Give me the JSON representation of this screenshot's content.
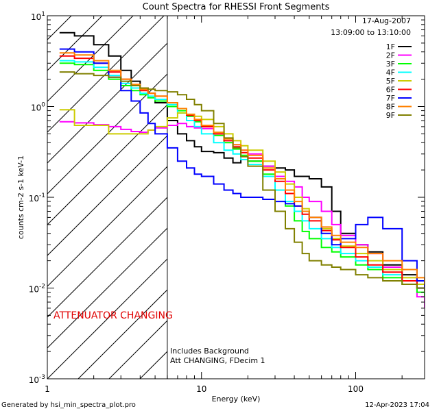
{
  "chart_data": {
    "type": "line",
    "title": "Count Spectra for RHESSI Front Segments",
    "xlabel": "Energy (keV)",
    "ylabel": "counts cm-2 s-1 keV-1",
    "xscale": "log",
    "yscale": "log",
    "xlim": [
      1,
      280
    ],
    "ylim": [
      0.001,
      10
    ],
    "x_ticks": [
      {
        "value": 1,
        "label": "1"
      },
      {
        "value": 10,
        "label": "10"
      },
      {
        "value": 100,
        "label": "100"
      }
    ],
    "y_ticks": [
      {
        "value": 10,
        "base": "10",
        "exp": "1"
      },
      {
        "value": 1,
        "base": "10",
        "exp": "0"
      },
      {
        "value": 0.1,
        "base": "10",
        "exp": "-1"
      },
      {
        "value": 0.01,
        "base": "10",
        "exp": "-2"
      },
      {
        "value": 0.001,
        "base": "10",
        "exp": "-3"
      }
    ],
    "date": "17-Aug-2007",
    "time_range": "13:09:00 to 13:10:00",
    "attenuator_label": "ATTENUATOR CHANGING",
    "attenuator_edge_keV": 6,
    "notes": [
      "Includes Background",
      "Att CHANGING, FDecim 1"
    ],
    "series": [
      {
        "name": "1F",
        "color": "#000000",
        "x": [
          1.2,
          1.5,
          2,
          2.5,
          3,
          3.5,
          4,
          4.5,
          5,
          6,
          7,
          8,
          9,
          10,
          12,
          14,
          16,
          18,
          20,
          25,
          30,
          35,
          40,
          45,
          50,
          60,
          70,
          80,
          100,
          120,
          150,
          200,
          250,
          280
        ],
        "y": [
          6.5,
          6,
          4.8,
          3.6,
          2.5,
          1.9,
          1.6,
          1.4,
          1.1,
          0.7,
          0.5,
          0.42,
          0.36,
          0.32,
          0.31,
          0.27,
          0.24,
          0.26,
          0.25,
          0.22,
          0.21,
          0.2,
          0.17,
          0.17,
          0.16,
          0.13,
          0.07,
          0.04,
          0.03,
          0.025,
          0.018,
          0.014,
          0.012,
          0.01
        ]
      },
      {
        "name": "2F",
        "color": "#ff00ff",
        "x": [
          1.2,
          1.5,
          2,
          2.5,
          3,
          3.5,
          4,
          4.5,
          5,
          6,
          7,
          8,
          9,
          10,
          12,
          14,
          16,
          18,
          20,
          25,
          30,
          35,
          40,
          45,
          50,
          60,
          70,
          80,
          100,
          120,
          150,
          200,
          250,
          280
        ],
        "y": [
          0.68,
          0.66,
          0.63,
          0.6,
          0.56,
          0.53,
          0.52,
          0.55,
          0.58,
          0.62,
          0.65,
          0.6,
          0.58,
          0.57,
          0.5,
          0.42,
          0.38,
          0.33,
          0.3,
          0.22,
          0.17,
          0.15,
          0.13,
          0.1,
          0.09,
          0.07,
          0.05,
          0.038,
          0.03,
          0.024,
          0.017,
          0.012,
          0.008,
          0.006
        ]
      },
      {
        "name": "3F",
        "color": "#00ff00",
        "x": [
          1.2,
          1.5,
          2,
          2.5,
          3,
          3.5,
          4,
          4.5,
          5,
          6,
          7,
          8,
          9,
          10,
          12,
          14,
          16,
          18,
          20,
          25,
          30,
          35,
          40,
          45,
          50,
          60,
          70,
          80,
          100,
          120,
          150,
          200,
          250,
          280
        ],
        "y": [
          3.0,
          2.9,
          2.5,
          2.0,
          1.7,
          1.5,
          1.35,
          1.25,
          1.15,
          1.0,
          0.9,
          0.78,
          0.68,
          0.6,
          0.48,
          0.4,
          0.34,
          0.29,
          0.25,
          0.18,
          0.12,
          0.08,
          0.055,
          0.042,
          0.035,
          0.028,
          0.025,
          0.022,
          0.018,
          0.016,
          0.013,
          0.011,
          0.009,
          0.008
        ]
      },
      {
        "name": "4F",
        "color": "#00ffff",
        "x": [
          1.2,
          1.5,
          2,
          2.5,
          3,
          3.5,
          4,
          4.5,
          5,
          6,
          7,
          8,
          9,
          10,
          12,
          14,
          16,
          18,
          20,
          25,
          30,
          35,
          40,
          45,
          50,
          60,
          70,
          80,
          100,
          120,
          150,
          200,
          250,
          280
        ],
        "y": [
          3.2,
          3.1,
          2.7,
          2.2,
          1.8,
          1.6,
          1.4,
          1.3,
          1.2,
          1.05,
          0.85,
          0.7,
          0.6,
          0.5,
          0.4,
          0.33,
          0.3,
          0.26,
          0.23,
          0.17,
          0.12,
          0.09,
          0.07,
          0.055,
          0.045,
          0.035,
          0.028,
          0.024,
          0.02,
          0.017,
          0.014,
          0.012,
          0.01,
          0.009
        ]
      },
      {
        "name": "5F",
        "color": "#cccc00",
        "x": [
          1.2,
          1.5,
          2,
          2.5,
          3,
          3.5,
          4,
          4.5,
          5,
          6,
          7,
          8,
          9,
          10,
          12,
          14,
          16,
          18,
          20,
          25,
          30,
          35,
          40,
          45,
          50,
          60,
          70,
          80,
          100,
          120,
          150,
          200,
          250,
          280
        ],
        "y": [
          0.92,
          0.62,
          0.62,
          0.5,
          0.5,
          0.5,
          0.5,
          0.55,
          0.6,
          0.75,
          0.85,
          0.82,
          0.78,
          0.72,
          0.6,
          0.5,
          0.42,
          0.37,
          0.33,
          0.25,
          0.19,
          0.14,
          0.1,
          0.075,
          0.06,
          0.045,
          0.035,
          0.029,
          0.024,
          0.02,
          0.016,
          0.013,
          0.011,
          0.01
        ]
      },
      {
        "name": "6F",
        "color": "#ff0000",
        "x": [
          1.2,
          1.5,
          2,
          2.5,
          3,
          3.5,
          4,
          4.5,
          5,
          6,
          7,
          8,
          9,
          10,
          12,
          14,
          16,
          18,
          20,
          25,
          30,
          35,
          40,
          45,
          50,
          60,
          70,
          80,
          100,
          120,
          150,
          200,
          250,
          280
        ],
        "y": [
          3.6,
          3.4,
          3.0,
          2.4,
          2.0,
          1.7,
          1.5,
          1.4,
          1.3,
          1.1,
          0.95,
          0.8,
          0.7,
          0.6,
          0.5,
          0.42,
          0.36,
          0.31,
          0.27,
          0.2,
          0.15,
          0.11,
          0.08,
          0.065,
          0.055,
          0.043,
          0.034,
          0.028,
          0.022,
          0.018,
          0.015,
          0.012,
          0.01,
          0.009
        ]
      },
      {
        "name": "7F",
        "color": "#0000ff",
        "x": [
          1.2,
          1.5,
          2,
          2.5,
          3,
          3.5,
          4,
          4.5,
          5,
          6,
          7,
          8,
          9,
          10,
          12,
          14,
          16,
          18,
          20,
          25,
          30,
          35,
          40,
          45,
          50,
          60,
          70,
          80,
          100,
          120,
          150,
          200,
          250,
          280
        ],
        "y": [
          4.3,
          4.0,
          3.0,
          2.1,
          1.5,
          1.15,
          0.85,
          0.65,
          0.5,
          0.35,
          0.25,
          0.21,
          0.18,
          0.17,
          0.14,
          0.12,
          0.11,
          0.1,
          0.1,
          0.095,
          0.09,
          0.085,
          0.08,
          0.07,
          0.06,
          0.04,
          0.03,
          0.035,
          0.05,
          0.06,
          0.045,
          0.02,
          0.012,
          0.01
        ]
      },
      {
        "name": "8F",
        "color": "#ff8000",
        "x": [
          1.2,
          1.5,
          2,
          2.5,
          3,
          3.5,
          4,
          4.5,
          5,
          6,
          7,
          8,
          9,
          10,
          12,
          14,
          16,
          18,
          20,
          25,
          30,
          35,
          40,
          45,
          50,
          60,
          70,
          80,
          100,
          120,
          150,
          200,
          250,
          280
        ],
        "y": [
          3.9,
          3.7,
          3.2,
          2.5,
          2.0,
          1.75,
          1.55,
          1.4,
          1.3,
          1.1,
          0.95,
          0.82,
          0.72,
          0.62,
          0.52,
          0.44,
          0.38,
          0.33,
          0.29,
          0.21,
          0.16,
          0.12,
          0.09,
          0.07,
          0.06,
          0.047,
          0.038,
          0.032,
          0.028,
          0.024,
          0.02,
          0.016,
          0.013,
          0.011
        ]
      },
      {
        "name": "9F",
        "color": "#808000",
        "x": [
          1.2,
          1.5,
          2,
          2.5,
          3,
          3.5,
          4,
          4.5,
          5,
          6,
          7,
          8,
          9,
          10,
          12,
          14,
          16,
          18,
          20,
          25,
          30,
          35,
          40,
          45,
          50,
          60,
          70,
          80,
          100,
          120,
          150,
          200,
          250,
          280
        ],
        "y": [
          2.4,
          2.3,
          2.2,
          2.1,
          1.9,
          1.7,
          1.6,
          1.55,
          1.5,
          1.45,
          1.35,
          1.2,
          1.05,
          0.9,
          0.65,
          0.45,
          0.35,
          0.28,
          0.22,
          0.12,
          0.07,
          0.045,
          0.032,
          0.024,
          0.02,
          0.018,
          0.017,
          0.016,
          0.014,
          0.013,
          0.012,
          0.011,
          0.01,
          0.009
        ]
      }
    ]
  },
  "footer": {
    "generated_by": "Generated by hsi_min_spectra_plot.pro",
    "timestamp": "12-Apr-2023 17:04"
  }
}
